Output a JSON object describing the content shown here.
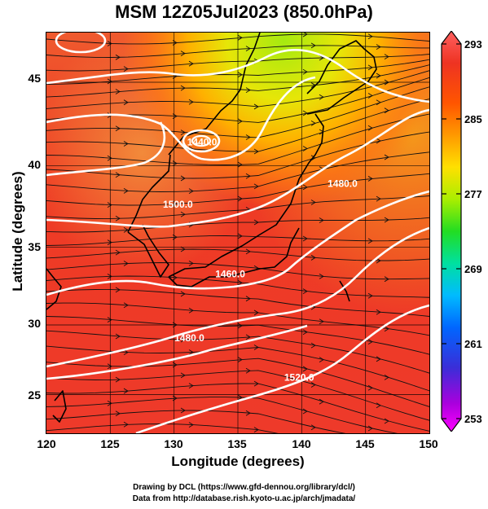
{
  "title": "MSM 12Z05Jul2023 (850.0hPa)",
  "xlabel": "Longitude (degrees)",
  "ylabel": "Latitude  (degrees)",
  "credits": {
    "line1": "Drawing by DCL (https://www.gfd-dennou.org/library/dcl/)",
    "line2": "Data from http://database.rish.kyoto-u.ac.jp/arch/jmadata/"
  },
  "map": {
    "type": "filled-contour with streamlines and height contours",
    "xlim": [
      120,
      150
    ],
    "ylim": [
      22.4,
      47.6
    ],
    "x_ticks": [
      "120",
      "125",
      "130",
      "135",
      "140",
      "145",
      "150"
    ],
    "y_ticks": [
      "25",
      "30",
      "35",
      "40",
      "45"
    ],
    "grid": true,
    "colorbar": {
      "ticks": [
        "293",
        "285",
        "277",
        "269",
        "261",
        "253"
      ],
      "range": [
        253,
        293
      ],
      "colors": [
        "#ff00ff",
        "#aa00dd",
        "#3a2ed8",
        "#0066ff",
        "#00bbff",
        "#00e0a0",
        "#22dd22",
        "#aaee00",
        "#ffe000",
        "#ff9900",
        "#ff5500",
        "#ee3322",
        "#ff6060"
      ]
    },
    "contour_labels": [
      {
        "text": "1480.0",
        "lon": 143.2,
        "lat": 37.9
      },
      {
        "text": "1500.0",
        "lon": 130.3,
        "lat": 36.6
      },
      {
        "text": "1440.0",
        "lon": 132.2,
        "lat": 40.5
      },
      {
        "text": "1460.0",
        "lon": 134.4,
        "lat": 32.2
      },
      {
        "text": "1480.0",
        "lon": 131.2,
        "lat": 28.2
      },
      {
        "text": "1520.0",
        "lon": 139.8,
        "lat": 25.7
      }
    ]
  }
}
